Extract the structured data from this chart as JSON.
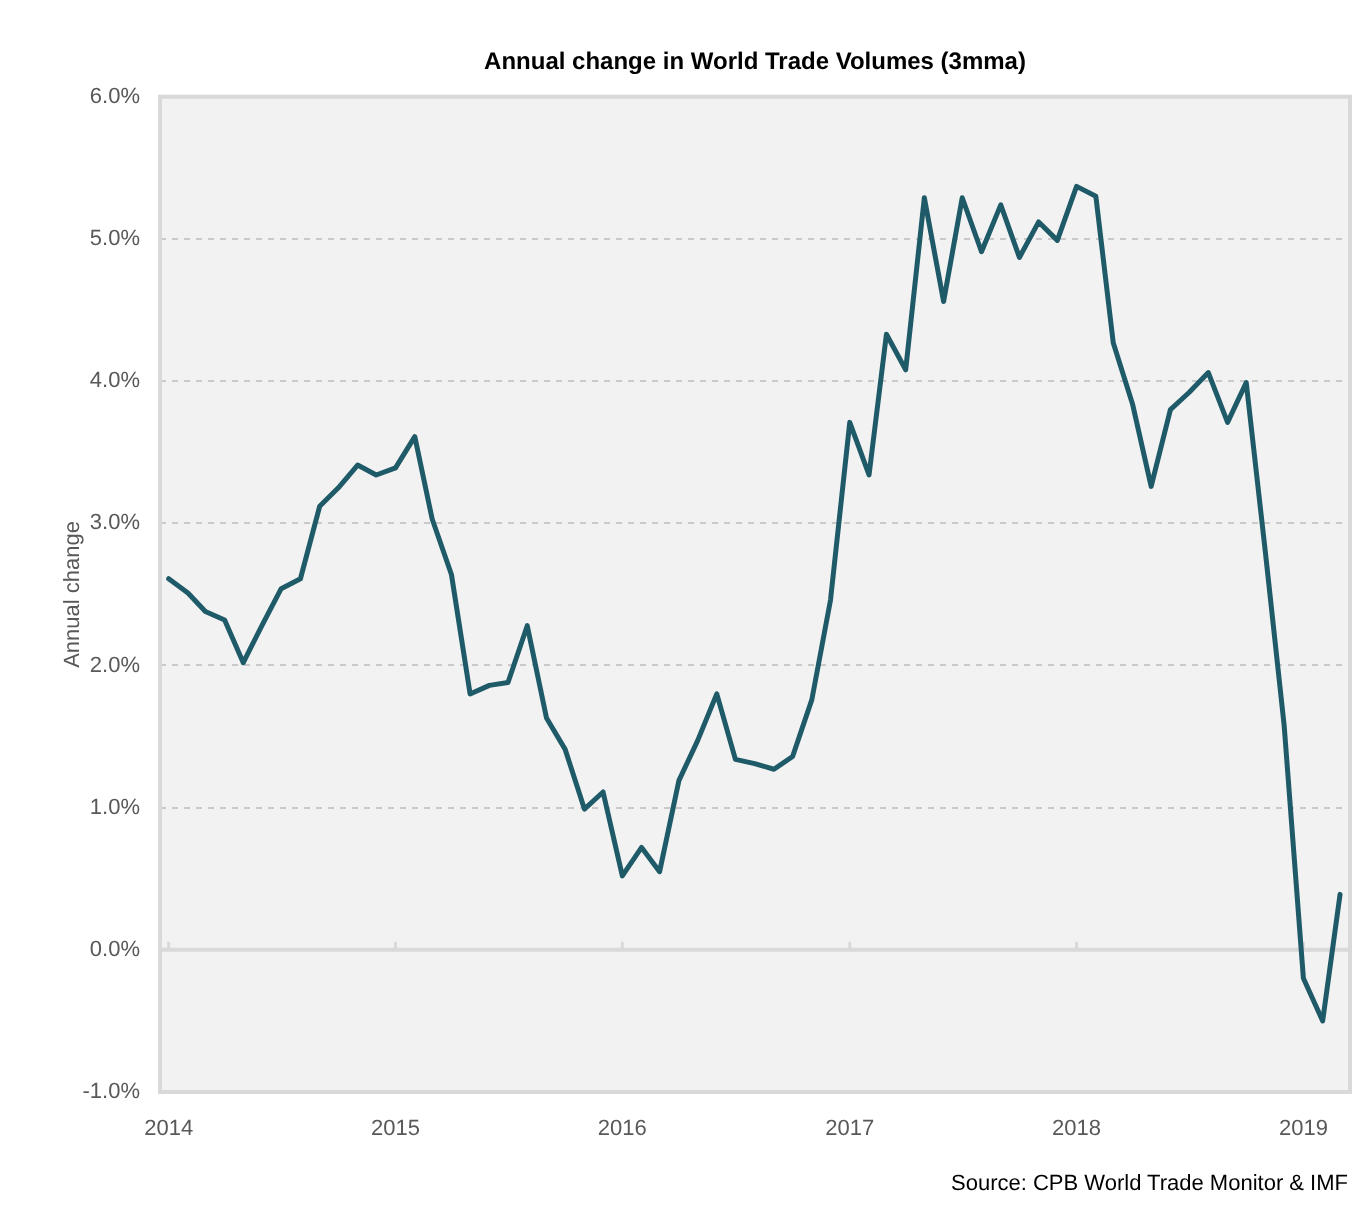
{
  "chart_data": {
    "type": "line",
    "title": "Annual change in World Trade Volumes (3mma)",
    "ylabel": "Annual change",
    "annotations": [
      "Source: CPB World Trade Monitor & IMF"
    ],
    "x": [
      "2014-01-15",
      "2014-02-15",
      "2014-03-15",
      "2014-04-15",
      "2014-05-15",
      "2014-06-15",
      "2014-07-15",
      "2014-08-15",
      "2014-09-15",
      "2014-10-15",
      "2014-11-15",
      "2014-12-15",
      "2015-01-15",
      "2015-02-15",
      "2015-03-15",
      "2015-04-15",
      "2015-05-15",
      "2015-06-15",
      "2015-07-15",
      "2015-08-15",
      "2015-09-15",
      "2015-10-15",
      "2015-11-15",
      "2015-12-15",
      "2016-01-15",
      "2016-02-15",
      "2016-03-15",
      "2016-04-15",
      "2016-05-15",
      "2016-06-15",
      "2016-07-15",
      "2016-08-15",
      "2016-09-15",
      "2016-10-15",
      "2016-11-15",
      "2016-12-15",
      "2017-01-15",
      "2017-02-15",
      "2017-03-15",
      "2017-04-15",
      "2017-05-15",
      "2017-06-15",
      "2017-07-15",
      "2017-08-15",
      "2017-09-15",
      "2017-10-15",
      "2017-11-15",
      "2017-12-15",
      "2018-01-15",
      "2018-02-15",
      "2018-03-15",
      "2018-04-15",
      "2018-05-15",
      "2018-06-15",
      "2018-07-15",
      "2018-08-15",
      "2018-09-15",
      "2018-10-15",
      "2018-11-15",
      "2018-12-15",
      "2019-01-15",
      "2019-02-15",
      "2019-03-15"
    ],
    "values": [
      2.61,
      2.51,
      2.38,
      2.32,
      2.02,
      2.29,
      2.54,
      2.61,
      3.12,
      3.25,
      3.41,
      3.34,
      3.39,
      3.61,
      3.03,
      2.64,
      1.8,
      1.86,
      1.88,
      2.28,
      1.63,
      1.41,
      0.99,
      1.11,
      0.52,
      0.72,
      0.55,
      1.19,
      1.47,
      1.8,
      1.34,
      1.31,
      1.27,
      1.36,
      1.76,
      2.46,
      3.71,
      3.34,
      4.33,
      4.08,
      5.29,
      4.56,
      5.29,
      4.91,
      5.24,
      4.87,
      5.12,
      4.99,
      5.37,
      5.3,
      4.27,
      3.84,
      3.26,
      3.8,
      3.92,
      4.06,
      3.71,
      3.99,
      2.79,
      1.58,
      -0.2,
      -0.5,
      0.39
    ],
    "color": "#1f5a68",
    "xlim": [
      "2014-01-01",
      "2019-03-31"
    ],
    "xticks": [
      {
        "value": "2014-01-15",
        "label": "2014"
      },
      {
        "value": "2015-01-15",
        "label": "2015"
      },
      {
        "value": "2016-01-15",
        "label": "2016"
      },
      {
        "value": "2017-01-15",
        "label": "2017"
      },
      {
        "value": "2018-01-15",
        "label": "2018"
      },
      {
        "value": "2019-01-15",
        "label": "2019"
      }
    ],
    "ylim": [
      -1,
      6
    ],
    "yticks": [
      {
        "value": -1,
        "label": "-1.0%"
      },
      {
        "value": 0,
        "label": "0.0%"
      },
      {
        "value": 1,
        "label": "1.0%"
      },
      {
        "value": 2,
        "label": "2.0%"
      },
      {
        "value": 3,
        "label": "3.0%"
      },
      {
        "value": 4,
        "label": "4.0%"
      },
      {
        "value": 5,
        "label": "5.0%"
      },
      {
        "value": 6,
        "label": "6.0%"
      }
    ],
    "grid": "y"
  }
}
